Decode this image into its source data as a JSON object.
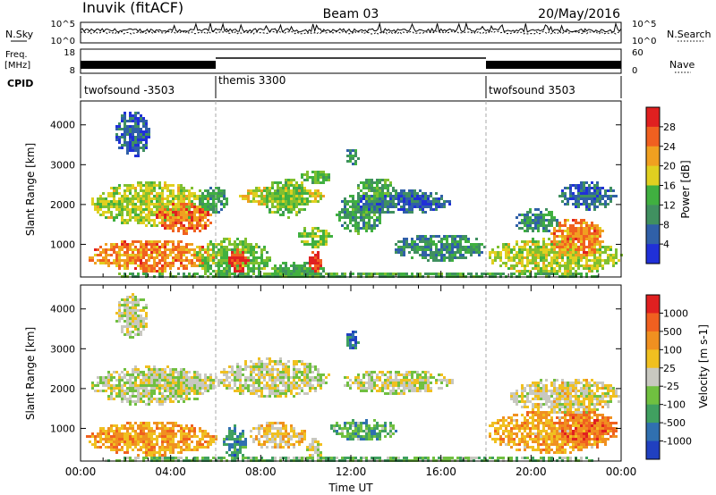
{
  "header": {
    "station": "Inuvik (fitACF)",
    "beam": "Beam 03",
    "date": "20/May/2016"
  },
  "chart_data": [
    {
      "type": "line",
      "panel": "noise",
      "left_label": "N.Sky",
      "right_label": "N.Search",
      "left_ticks": [
        "10^5",
        "10^0"
      ],
      "right_ticks": [
        "10^5",
        "10^0"
      ],
      "ylim": [
        0,
        5
      ],
      "y_scale": "log"
    },
    {
      "type": "line",
      "panel": "frequency",
      "left_label_lines": [
        "Freq.",
        "[MHz]"
      ],
      "right_label": "Nave",
      "left_ticks": [
        "18",
        "8"
      ],
      "right_ticks": [
        "60",
        "0"
      ],
      "ylim": [
        8,
        18
      ],
      "segments": [
        {
          "from": 0,
          "to": 6,
          "level": "high"
        },
        {
          "from": 6,
          "to": 18,
          "level": "low"
        },
        {
          "from": 18,
          "to": 24,
          "level": "high"
        }
      ]
    },
    {
      "type": "table",
      "panel": "cpid",
      "label": "CPID",
      "modes": [
        {
          "start": 0,
          "end": 6,
          "name": "twofsound -3503"
        },
        {
          "start": 6,
          "end": 18,
          "name": "themis 3300"
        },
        {
          "start": 18,
          "end": 24,
          "name": "twofsound 3503"
        }
      ]
    },
    {
      "type": "heatmap",
      "panel": "power",
      "ylabel": "Slant Range [km]",
      "ylim": [
        180,
        4600
      ],
      "y_ticks": [
        1000,
        2000,
        3000,
        4000
      ],
      "colorbar_label": "Power [dB]",
      "colorbar_ticks": [
        "28",
        "24",
        "20",
        "16",
        "12",
        "8",
        "4"
      ],
      "colors": [
        "#2030d8",
        "#3060a8",
        "#409060",
        "#40b040",
        "#80c030",
        "#e0d020",
        "#f0a020",
        "#f06020",
        "#e02020"
      ],
      "blobs": [
        {
          "x0": 0.2,
          "x1": 6.0,
          "y0": 350,
          "y1": 1150,
          "level": 0.8
        },
        {
          "x0": 0.4,
          "x1": 5.8,
          "y0": 1500,
          "y1": 2600,
          "level": 0.55
        },
        {
          "x0": 3.3,
          "x1": 5.8,
          "y0": 1300,
          "y1": 2100,
          "level": 0.85
        },
        {
          "x0": 5.0,
          "x1": 8.4,
          "y0": 200,
          "y1": 1200,
          "level": 0.45
        },
        {
          "x0": 5.2,
          "x1": 6.5,
          "y0": 1800,
          "y1": 2500,
          "level": 0.3
        },
        {
          "x0": 6.5,
          "x1": 7.4,
          "y0": 250,
          "y1": 950,
          "level": 0.95
        },
        {
          "x0": 7.0,
          "x1": 10.9,
          "y0": 2000,
          "y1": 2500,
          "level": 0.6
        },
        {
          "x0": 8.0,
          "x1": 10.2,
          "y0": 1700,
          "y1": 2700,
          "level": 0.45
        },
        {
          "x0": 9.7,
          "x1": 11.1,
          "y0": 2550,
          "y1": 2900,
          "level": 0.4
        },
        {
          "x0": 8.4,
          "x1": 10.8,
          "y0": 200,
          "y1": 600,
          "level": 0.35
        },
        {
          "x0": 10.1,
          "x1": 10.7,
          "y0": 250,
          "y1": 900,
          "level": 0.95
        },
        {
          "x0": 9.6,
          "x1": 11.1,
          "y0": 950,
          "y1": 1500,
          "level": 0.5
        },
        {
          "x0": 11.3,
          "x1": 13.4,
          "y0": 1300,
          "y1": 2300,
          "level": 0.3
        },
        {
          "x0": 12.2,
          "x1": 16.4,
          "y0": 1800,
          "y1": 2400,
          "level": 0.15
        },
        {
          "x0": 12.2,
          "x1": 14.0,
          "y0": 2100,
          "y1": 2700,
          "level": 0.35
        },
        {
          "x0": 13.8,
          "x1": 18.0,
          "y0": 600,
          "y1": 1300,
          "level": 0.25
        },
        {
          "x0": 18.0,
          "x1": 24.0,
          "y0": 250,
          "y1": 1200,
          "level": 0.55
        },
        {
          "x0": 20.8,
          "x1": 23.2,
          "y0": 700,
          "y1": 1700,
          "level": 0.8
        },
        {
          "x0": 19.2,
          "x1": 21.2,
          "y0": 1300,
          "y1": 1950,
          "level": 0.25
        },
        {
          "x0": 21.2,
          "x1": 23.8,
          "y0": 1900,
          "y1": 2600,
          "level": 0.15
        },
        {
          "x0": 1.5,
          "x1": 3.0,
          "y0": 3200,
          "y1": 4400,
          "level": 0.1
        },
        {
          "x0": 11.7,
          "x1": 12.4,
          "y0": 3000,
          "y1": 3500,
          "level": 0.25
        },
        {
          "x0": 0.0,
          "x1": 24.0,
          "y0": 180,
          "y1": 330,
          "level": 0.35
        }
      ]
    },
    {
      "type": "heatmap",
      "panel": "velocity",
      "ylabel": "Slant Range [km]",
      "ylim": [
        180,
        4600
      ],
      "y_ticks": [
        1000,
        2000,
        3000,
        4000
      ],
      "x_ticks": [
        "00:00",
        "04:00",
        "08:00",
        "12:00",
        "16:00",
        "20:00",
        "00:00"
      ],
      "xlabel": "Time UT",
      "colorbar_label": "Velocity [m s-1]",
      "colorbar_ticks": [
        "1000",
        "500",
        "100",
        "25",
        "-25",
        "-100",
        "-500",
        "-1000"
      ],
      "colors": [
        "#2040c0",
        "#3070b0",
        "#40a060",
        "#70c040",
        "#c8c8c0",
        "#f0c020",
        "#f09020",
        "#f06020",
        "#e02020"
      ],
      "blobs": [
        {
          "x0": 0.2,
          "x1": 6.0,
          "y0": 350,
          "y1": 1200,
          "level": 0.72
        },
        {
          "x0": 0.4,
          "x1": 5.8,
          "y0": 1600,
          "y1": 2600,
          "level": 0.48
        },
        {
          "x0": 2.5,
          "x1": 6.2,
          "y0": 1900,
          "y1": 2500,
          "level": 0.5
        },
        {
          "x0": 6.0,
          "x1": 11.0,
          "y0": 1800,
          "y1": 2800,
          "level": 0.5
        },
        {
          "x0": 6.3,
          "x1": 7.3,
          "y0": 200,
          "y1": 1100,
          "level": 0.2
        },
        {
          "x0": 7.4,
          "x1": 10.0,
          "y0": 500,
          "y1": 1200,
          "level": 0.62
        },
        {
          "x0": 10.0,
          "x1": 10.7,
          "y0": 250,
          "y1": 800,
          "level": 0.5
        },
        {
          "x0": 11.0,
          "x1": 14.0,
          "y0": 700,
          "y1": 1300,
          "level": 0.3
        },
        {
          "x0": 11.5,
          "x1": 16.5,
          "y0": 1900,
          "y1": 2500,
          "level": 0.5
        },
        {
          "x0": 18.0,
          "x1": 23.8,
          "y0": 400,
          "y1": 1500,
          "level": 0.7
        },
        {
          "x0": 21.0,
          "x1": 23.8,
          "y0": 600,
          "y1": 1500,
          "level": 0.82
        },
        {
          "x0": 19.0,
          "x1": 24.0,
          "y0": 1400,
          "y1": 2300,
          "level": 0.55
        },
        {
          "x0": 1.5,
          "x1": 3.0,
          "y0": 3300,
          "y1": 4400,
          "level": 0.5
        },
        {
          "x0": 11.7,
          "x1": 12.3,
          "y0": 3000,
          "y1": 3500,
          "level": 0.1
        },
        {
          "x0": 0.0,
          "x1": 24.0,
          "y0": 180,
          "y1": 330,
          "level": 0.35
        }
      ]
    }
  ]
}
